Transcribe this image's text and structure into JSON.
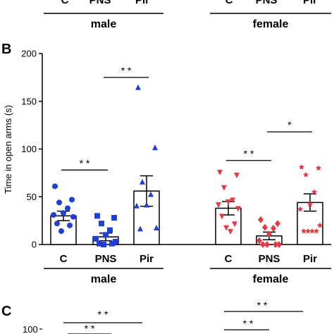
{
  "top_strip": {
    "cat_labels": [
      "C",
      "PNS",
      "Pir",
      "C",
      "PNS",
      "Pir"
    ],
    "groups": [
      "male",
      "female"
    ]
  },
  "chart_data": {
    "type": "bar",
    "panel_label": "B",
    "ylabel": "Time in open arms (s)",
    "ylim": [
      0,
      200
    ],
    "yticks": [
      0,
      50,
      100,
      150,
      200
    ],
    "groups": [
      "male",
      "female"
    ],
    "categories": [
      "C",
      "PNS",
      "Pir",
      "C",
      "PNS",
      "Pir"
    ],
    "bars": [
      {
        "group": "male",
        "category": "C",
        "mean": 30,
        "sem": 5,
        "color": "#1f3fd6",
        "marker": "circle",
        "points": [
          61,
          47,
          44,
          38,
          33,
          31,
          29,
          22,
          20,
          14
        ]
      },
      {
        "group": "male",
        "category": "PNS",
        "mean": 8,
        "sem": 4,
        "color": "#1f3fd6",
        "marker": "square",
        "points": [
          30,
          28,
          22,
          15,
          10,
          6,
          3,
          1,
          1,
          0
        ]
      },
      {
        "group": "male",
        "category": "Pir",
        "mean": 56,
        "sem": 16,
        "color": "#1f3fd6",
        "marker": "triangle",
        "points": [
          164,
          101,
          65,
          52,
          41,
          40,
          17,
          16
        ]
      },
      {
        "group": "female",
        "category": "C",
        "mean": 38,
        "sem": 7,
        "color": "#e63946",
        "marker": "triangle-down",
        "points": [
          76,
          73,
          60,
          47,
          45,
          42,
          38,
          30,
          22,
          18,
          14
        ]
      },
      {
        "group": "female",
        "category": "PNS",
        "mean": 9,
        "sem": 4,
        "color": "#e63946",
        "marker": "diamond",
        "points": [
          26,
          22,
          18,
          17,
          11,
          4,
          0,
          0,
          0,
          0
        ]
      },
      {
        "group": "female",
        "category": "Pir",
        "mean": 44,
        "sem": 9,
        "color": "#e63946",
        "marker": "star",
        "points": [
          81,
          80,
          73,
          55,
          42,
          37,
          20,
          14,
          14,
          14,
          14
        ]
      }
    ],
    "significance": [
      {
        "from": 0,
        "to": 1,
        "y": 78,
        "label": "* *"
      },
      {
        "from": 1,
        "to": 2,
        "y": 175,
        "label": "* *"
      },
      {
        "from": 3,
        "to": 4,
        "y": 88,
        "label": "* *"
      },
      {
        "from": 4,
        "to": 5,
        "y": 118,
        "label": "*"
      }
    ]
  },
  "panel_c": {
    "panel_label": "C",
    "y_top_label": "100",
    "significance": [
      {
        "label": "* *"
      },
      {
        "label": "* *"
      },
      {
        "label": "* *"
      },
      {
        "label": "* *"
      }
    ]
  }
}
